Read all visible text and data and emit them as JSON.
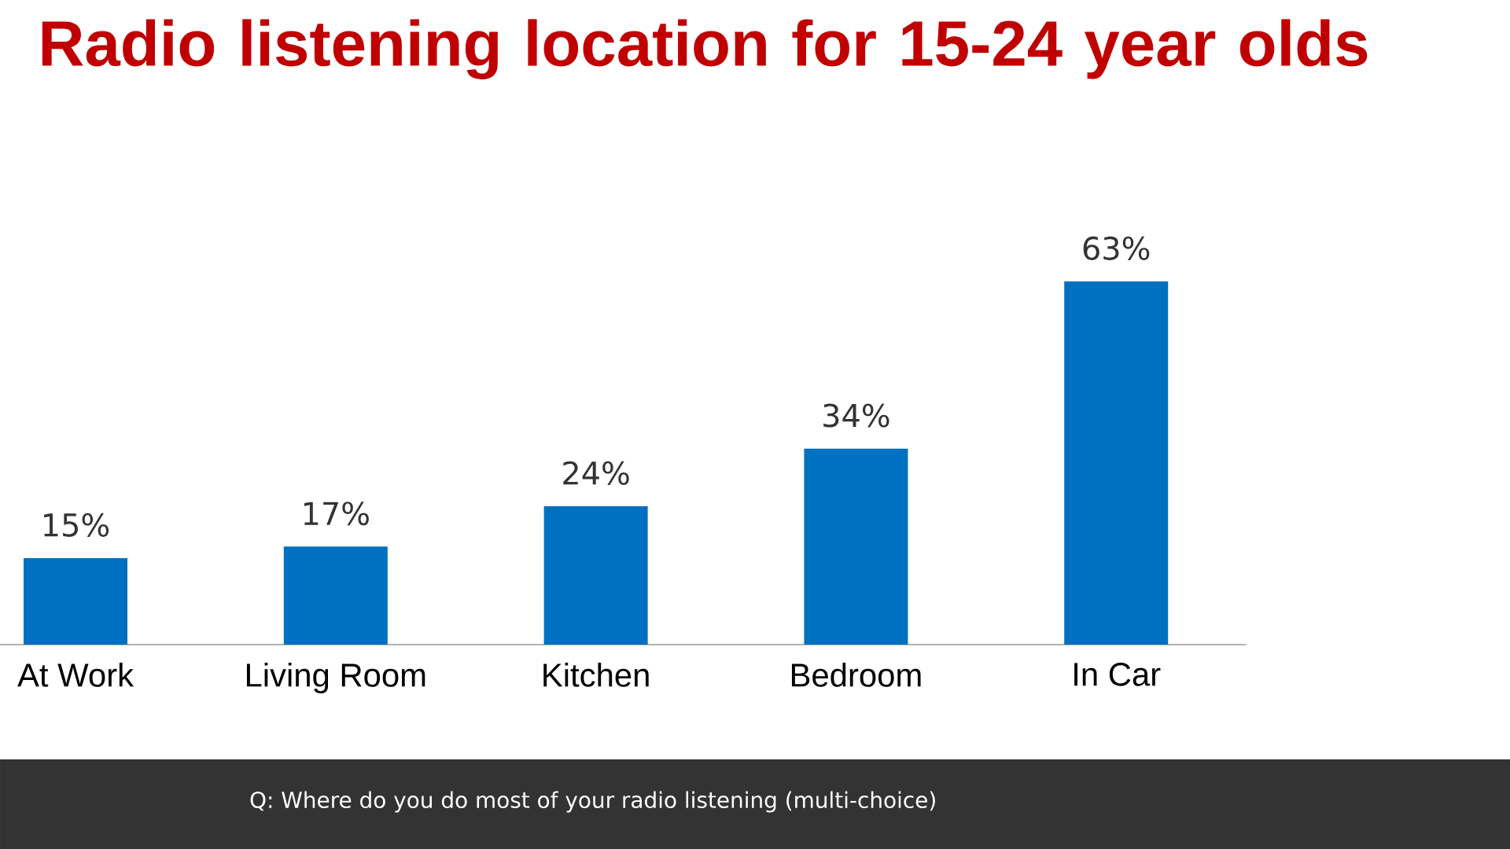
{
  "chart_data": {
    "type": "bar",
    "title": "Radio listening location for 15-24 year olds",
    "categories": [
      "At Work",
      "Living Room",
      "Kitchen",
      "Bedroom",
      "In Car"
    ],
    "values": [
      15,
      17,
      24,
      34,
      63
    ],
    "value_labels": [
      "15%",
      "17%",
      "24%",
      "34%",
      "63%"
    ],
    "color": "#0070c0",
    "annotations": [
      "Q: Where do you do most of your radio listening (multi-choice)"
    ]
  }
}
